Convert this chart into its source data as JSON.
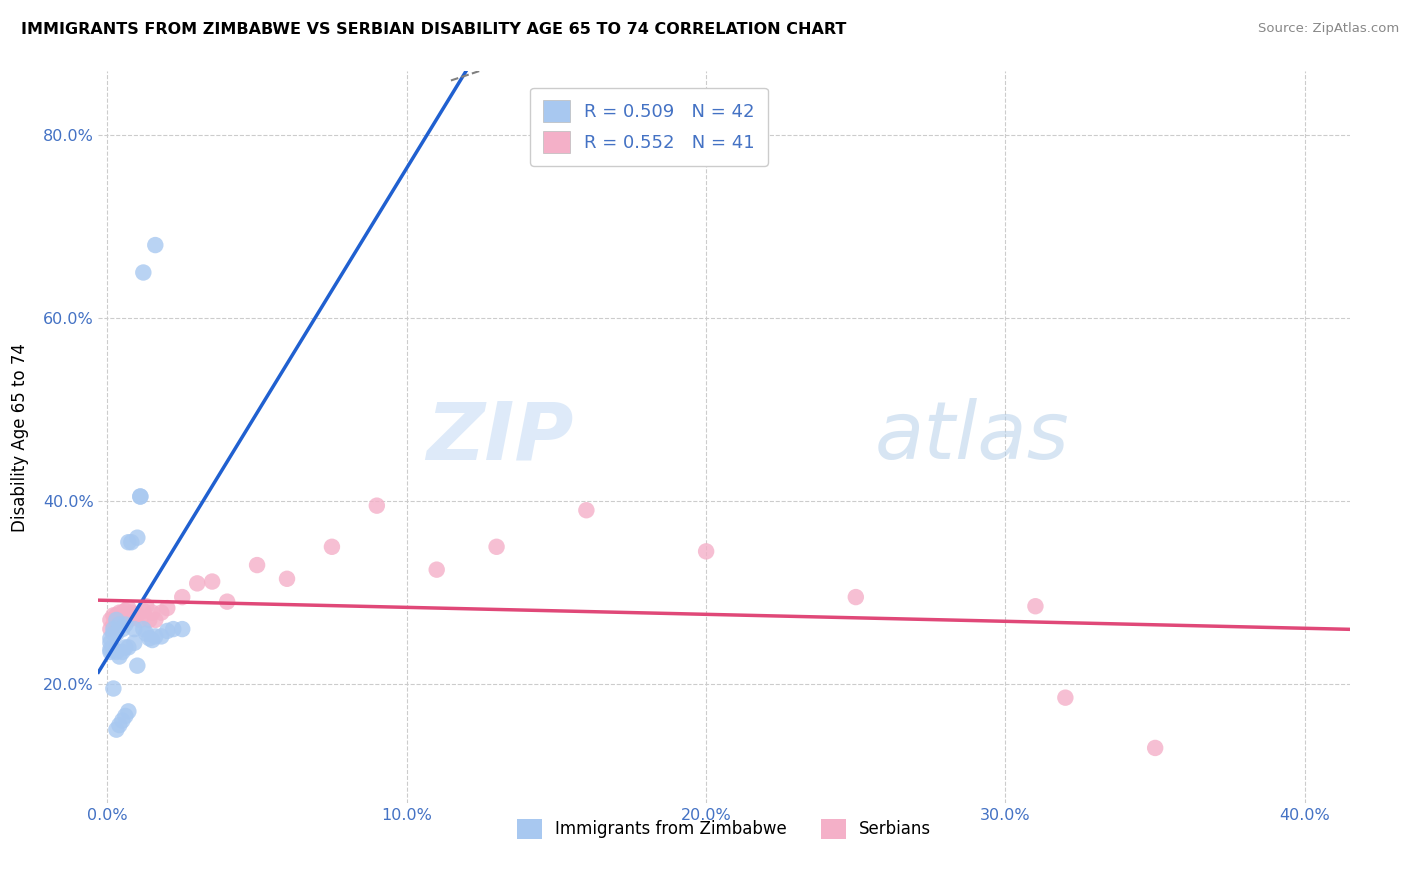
{
  "title": "IMMIGRANTS FROM ZIMBABWE VS SERBIAN DISABILITY AGE 65 TO 74 CORRELATION CHART",
  "source": "Source: ZipAtlas.com",
  "ylabel": "Disability Age 65 to 74",
  "x_tick_vals": [
    0.0,
    0.1,
    0.2,
    0.3,
    0.4
  ],
  "y_tick_vals": [
    0.2,
    0.4,
    0.6,
    0.8
  ],
  "xlim": [
    -0.003,
    0.415
  ],
  "ylim": [
    0.07,
    0.87
  ],
  "legend1_label": "R = 0.509   N = 42",
  "legend2_label": "R = 0.552   N = 41",
  "legend_bottom_label1": "Immigrants from Zimbabwe",
  "legend_bottom_label2": "Serbians",
  "blue_fill": "#a8c8f0",
  "pink_fill": "#f4b0c8",
  "line_blue": "#2060d0",
  "line_pink": "#e04878",
  "zimbabwe_x": [
    0.001,
    0.001,
    0.001,
    0.002,
    0.002,
    0.002,
    0.003,
    0.003,
    0.003,
    0.004,
    0.004,
    0.005,
    0.005,
    0.006,
    0.006,
    0.007,
    0.007,
    0.008,
    0.009,
    0.01,
    0.01,
    0.011,
    0.011,
    0.012,
    0.013,
    0.014,
    0.015,
    0.016,
    0.018,
    0.02,
    0.022,
    0.025,
    0.001,
    0.002,
    0.003,
    0.004,
    0.005,
    0.006,
    0.007,
    0.009,
    0.012,
    0.016
  ],
  "zimbabwe_y": [
    0.25,
    0.245,
    0.235,
    0.26,
    0.255,
    0.195,
    0.27,
    0.255,
    0.15,
    0.265,
    0.155,
    0.26,
    0.16,
    0.265,
    0.165,
    0.355,
    0.17,
    0.355,
    0.26,
    0.36,
    0.22,
    0.405,
    0.405,
    0.26,
    0.255,
    0.25,
    0.248,
    0.252,
    0.252,
    0.258,
    0.26,
    0.26,
    0.238,
    0.238,
    0.235,
    0.23,
    0.235,
    0.24,
    0.24,
    0.245,
    0.65,
    0.68
  ],
  "serbian_x": [
    0.001,
    0.001,
    0.002,
    0.002,
    0.003,
    0.003,
    0.004,
    0.004,
    0.005,
    0.005,
    0.006,
    0.006,
    0.007,
    0.007,
    0.008,
    0.009,
    0.01,
    0.011,
    0.012,
    0.013,
    0.014,
    0.015,
    0.016,
    0.018,
    0.02,
    0.025,
    0.03,
    0.035,
    0.04,
    0.05,
    0.06,
    0.075,
    0.09,
    0.11,
    0.13,
    0.16,
    0.2,
    0.25,
    0.31,
    0.32,
    0.35
  ],
  "serbian_y": [
    0.27,
    0.26,
    0.275,
    0.265,
    0.275,
    0.27,
    0.278,
    0.272,
    0.278,
    0.27,
    0.28,
    0.272,
    0.283,
    0.27,
    0.278,
    0.273,
    0.276,
    0.27,
    0.28,
    0.285,
    0.27,
    0.278,
    0.27,
    0.278,
    0.283,
    0.295,
    0.31,
    0.312,
    0.29,
    0.33,
    0.315,
    0.35,
    0.395,
    0.325,
    0.35,
    0.39,
    0.345,
    0.295,
    0.285,
    0.185,
    0.13
  ]
}
